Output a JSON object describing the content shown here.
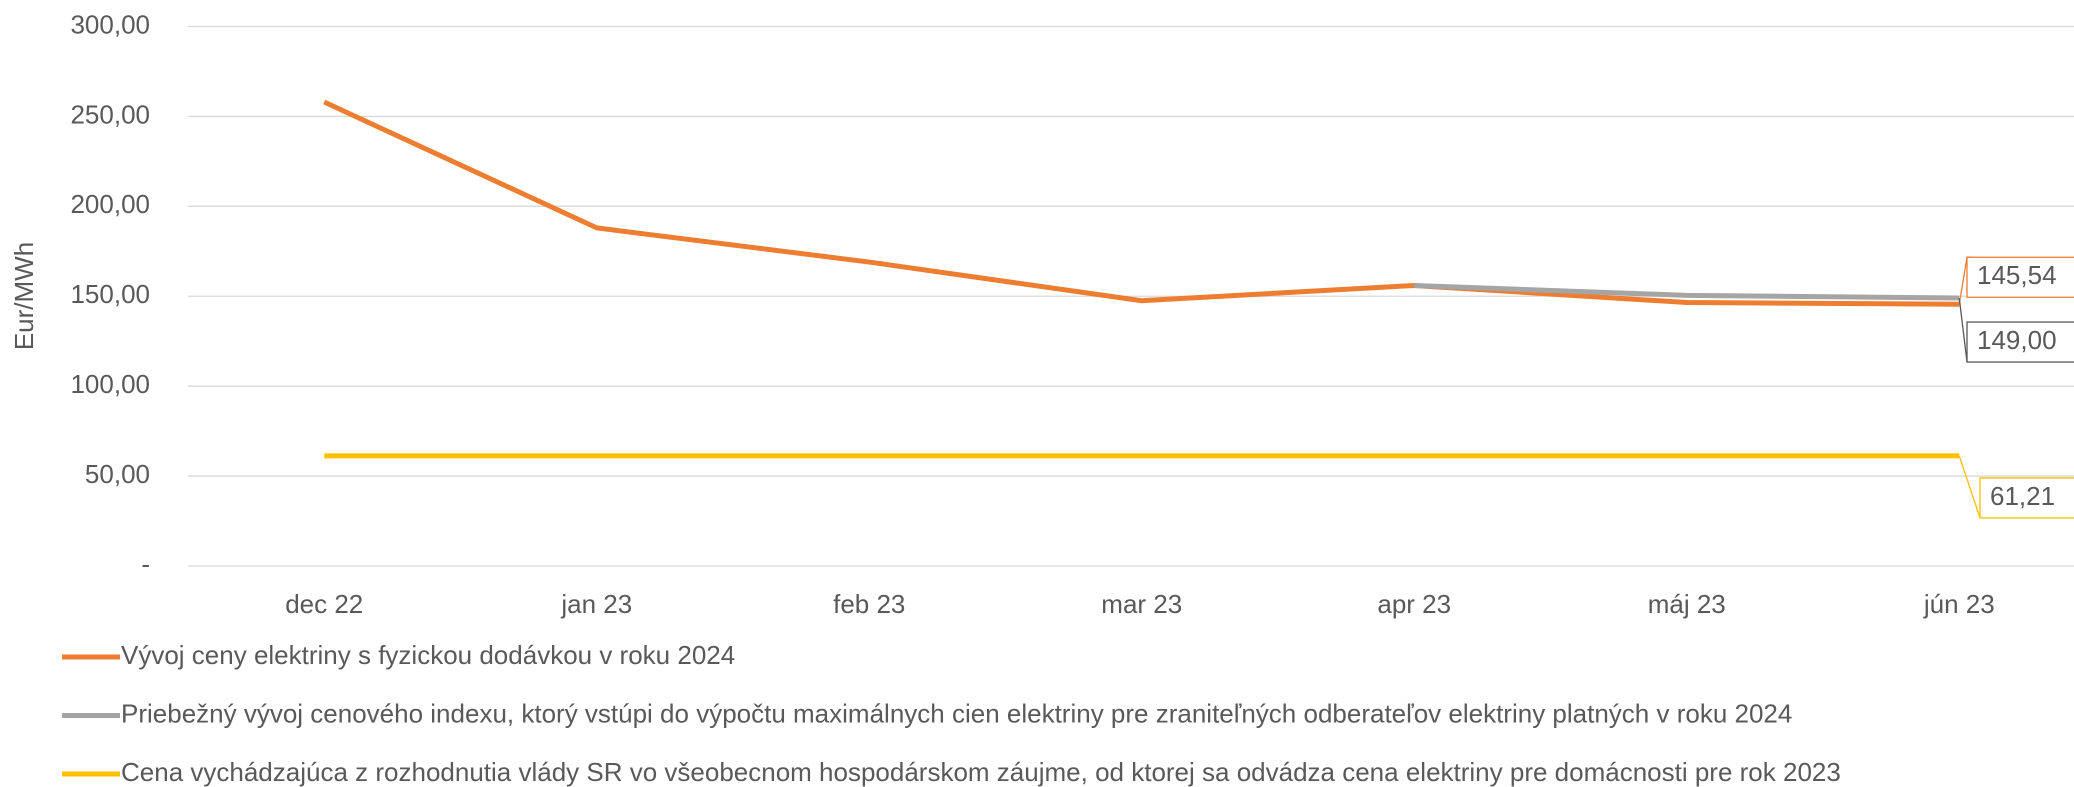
{
  "chart_data": {
    "type": "line",
    "y_label": "Eur/MWh",
    "categories": [
      "dec 22",
      "jan 23",
      "feb 23",
      "mar 23",
      "apr 23",
      "máj 23",
      "jún 23"
    ],
    "series": [
      {
        "name": "Vývoj ceny elektriny s fyzickou dodávkou v roku 2024",
        "color": "#ed7d31",
        "values": [
          258,
          188,
          169,
          147.5,
          156,
          146.5,
          145.54
        ],
        "value_labels": [
          null,
          null,
          null,
          null,
          null,
          null,
          "145,54"
        ]
      },
      {
        "name": "Priebežný vývoj cenového indexu, ktorý vstúpi do výpočtu maximálnych cien elektriny pre zraniteľných odberateľov elektriny platných v roku 2024",
        "color": "#a5a5a5",
        "values": [
          null,
          null,
          null,
          null,
          156,
          150.5,
          149.0
        ],
        "value_labels": [
          null,
          null,
          null,
          null,
          null,
          null,
          "149,00"
        ]
      },
      {
        "name": "Cena vychádzajúca z rozhodnutia vlády SR vo všeobecnom hospodárskom záujme, od ktorej sa odvádza cena elektriny pre domácnosti pre rok 2023",
        "color": "#ffc000",
        "values": [
          61.21,
          61.21,
          61.21,
          61.21,
          61.21,
          61.21,
          61.21
        ],
        "value_labels": [
          null,
          null,
          null,
          null,
          null,
          null,
          "61,21"
        ]
      }
    ],
    "ylim": [
      0,
      300
    ],
    "yticks": [
      {
        "value": 0,
        "label": "-"
      },
      {
        "value": 50,
        "label": "50,00"
      },
      {
        "value": 100,
        "label": "100,00"
      },
      {
        "value": 150,
        "label": "150,00"
      },
      {
        "value": 200,
        "label": "200,00"
      },
      {
        "value": 250,
        "label": "250,00"
      },
      {
        "value": 300,
        "label": "300,00"
      }
    ],
    "grid": true
  }
}
